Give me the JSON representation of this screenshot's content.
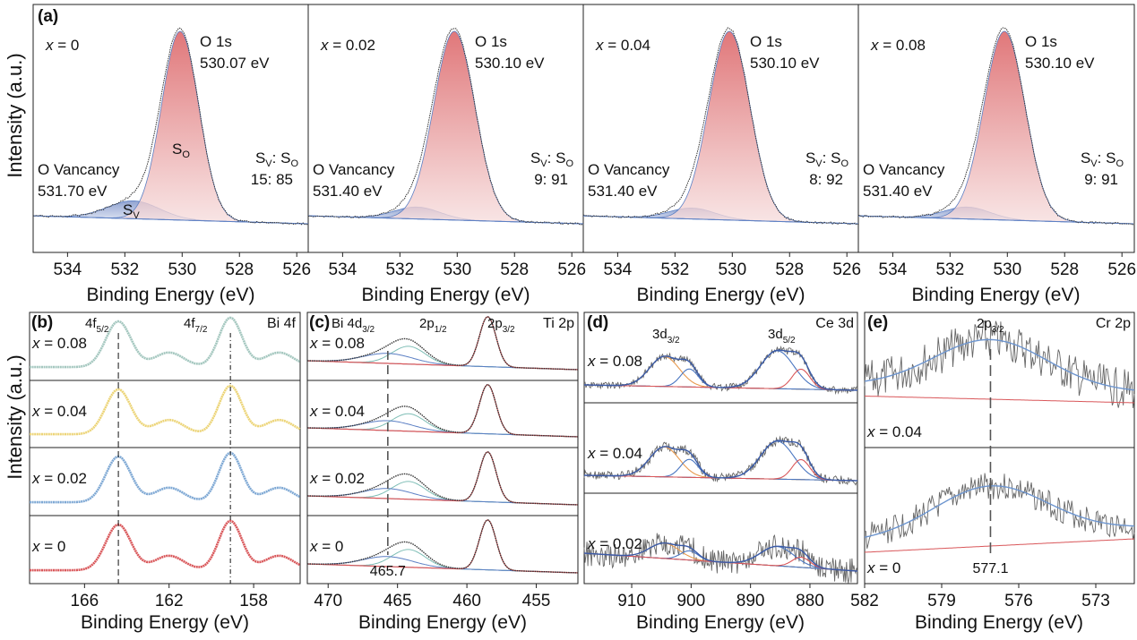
{
  "figure": {
    "y_axis_label": "Intensity (a.u.)",
    "x_axis_label": "Binding Energy (eV)"
  },
  "chart_data": [
    {
      "panel": "(a)",
      "type": "line",
      "element": "O 1s",
      "xlim": [
        535.2,
        525.6
      ],
      "xticks": [
        534,
        532,
        530,
        528,
        526
      ],
      "subpanels": [
        {
          "x_label": "x = 0",
          "main_label": "O 1s",
          "main_energy": "530.07 eV",
          "main_center": 530.07,
          "main_amp": 0.95,
          "main_width": 0.65,
          "vac_label": "O Vancancy",
          "vac_energy": "531.70 eV",
          "vac_center": 531.7,
          "vac_amp": 0.09,
          "vac_width": 0.9,
          "ratio_label": "S_V: S_O",
          "ratio": "15: 85",
          "so_label": "S_O",
          "sv_label": "S_V"
        },
        {
          "x_label": "x = 0.02",
          "main_label": "O 1s",
          "main_energy": "530.10 eV",
          "main_center": 530.1,
          "main_amp": 0.95,
          "main_width": 0.72,
          "vac_label": "O Vancancy",
          "vac_energy": "531.40 eV",
          "vac_center": 531.4,
          "vac_amp": 0.06,
          "vac_width": 0.8,
          "ratio_label": "S_V: S_O",
          "ratio": "9: 91"
        },
        {
          "x_label": "x = 0.04",
          "main_label": "O 1s",
          "main_energy": "530.10 eV",
          "main_center": 530.1,
          "main_amp": 0.95,
          "main_width": 0.72,
          "vac_label": "O Vancancy",
          "vac_energy": "531.40 eV",
          "vac_center": 531.4,
          "vac_amp": 0.055,
          "vac_width": 0.8,
          "ratio_label": "S_V: S_O",
          "ratio": "8: 92"
        },
        {
          "x_label": "x = 0.08",
          "main_label": "O 1s",
          "main_energy": "530.10 eV",
          "main_center": 530.1,
          "main_amp": 0.95,
          "main_width": 0.72,
          "vac_label": "O Vancancy",
          "vac_energy": "531.40 eV",
          "vac_center": 531.4,
          "vac_amp": 0.06,
          "vac_width": 0.8,
          "ratio_label": "S_V: S_O",
          "ratio": "9: 91"
        }
      ]
    },
    {
      "panel": "(b)",
      "type": "line",
      "element": "Bi 4f",
      "xlim": [
        168.6,
        155.8
      ],
      "xticks": [
        166,
        162,
        158
      ],
      "peak_labels": [
        "4f_5/2",
        "4f_7/2"
      ],
      "dashed_lines": [
        164.4,
        159.1
      ],
      "peaks": [
        {
          "center": 164.4,
          "amp": 0.88,
          "width": 0.6
        },
        {
          "center": 159.1,
          "amp": 0.95,
          "width": 0.55
        },
        {
          "center": 162.0,
          "amp": 0.28,
          "width": 0.7
        },
        {
          "center": 156.8,
          "amp": 0.28,
          "width": 0.7
        }
      ],
      "series": [
        {
          "name": "x = 0.08",
          "color": "#a4c7bf"
        },
        {
          "name": "x = 0.04",
          "color": "#ecd477"
        },
        {
          "name": "x = 0.02",
          "color": "#7ea8d4"
        },
        {
          "name": "x = 0",
          "color": "#d9575a"
        }
      ]
    },
    {
      "panel": "(c)",
      "type": "line",
      "element": "Ti 2p",
      "xlim": [
        471.5,
        452.0
      ],
      "xticks": [
        470,
        465,
        460,
        455
      ],
      "peak_labels": [
        "Bi 4d_3/2",
        "2p_1/2",
        "2p_3/2"
      ],
      "dashed_line": 465.7,
      "dashed_label": "465.7",
      "peaks": [
        {
          "center": 458.5,
          "amp": 0.9,
          "width": 0.6
        },
        {
          "center": 464.2,
          "amp": 0.32,
          "width": 1.2
        },
        {
          "center": 465.7,
          "amp": 0.18,
          "width": 1.8
        }
      ],
      "series": [
        {
          "name": "x = 0.08"
        },
        {
          "name": "x = 0.04"
        },
        {
          "name": "x = 0.02"
        },
        {
          "name": "x = 0"
        }
      ]
    },
    {
      "panel": "(d)",
      "type": "line",
      "element": "Ce 3d",
      "xlim": [
        918,
        872
      ],
      "xticks": [
        910,
        900,
        890,
        880
      ],
      "peak_labels": [
        "3d_3/2",
        "3d_5/2"
      ],
      "peaks": [
        {
          "center": 904.5,
          "amp": 0.75,
          "width": 2.5
        },
        {
          "center": 900.3,
          "amp": 0.45,
          "width": 1.5
        },
        {
          "center": 885.5,
          "amp": 0.95,
          "width": 2.8
        },
        {
          "center": 881.5,
          "amp": 0.5,
          "width": 1.5
        }
      ],
      "series": [
        {
          "name": "x = 0.08",
          "noise": 0.06
        },
        {
          "name": "x = 0.04",
          "noise": 0.08
        },
        {
          "name": "x = 0.02",
          "noise": 0.22
        }
      ]
    },
    {
      "panel": "(e)",
      "type": "line",
      "element": "Cr 2p",
      "xlim": [
        582,
        571.5
      ],
      "xticks": [
        582,
        579,
        576,
        573
      ],
      "peak_labels": [
        "2p_3/2"
      ],
      "dashed_line": 577.1,
      "dashed_label": "577.1",
      "peaks": [
        {
          "center": 577.1,
          "amp": 0.75,
          "width": 2.2
        }
      ],
      "series": [
        {
          "name": "x = 0.04",
          "noise": 0.22
        },
        {
          "name": "x = 0",
          "noise": 0.15
        }
      ]
    }
  ],
  "colors": {
    "so_fill": "#e8a5a6",
    "sv_fill": "#a9b8d8",
    "fit": "#5b7fc4",
    "data": "#444444",
    "cyan": "#8fc6c4",
    "red": "#d9575a",
    "orange": "#e89a4e",
    "blue": "#4b77c1"
  }
}
